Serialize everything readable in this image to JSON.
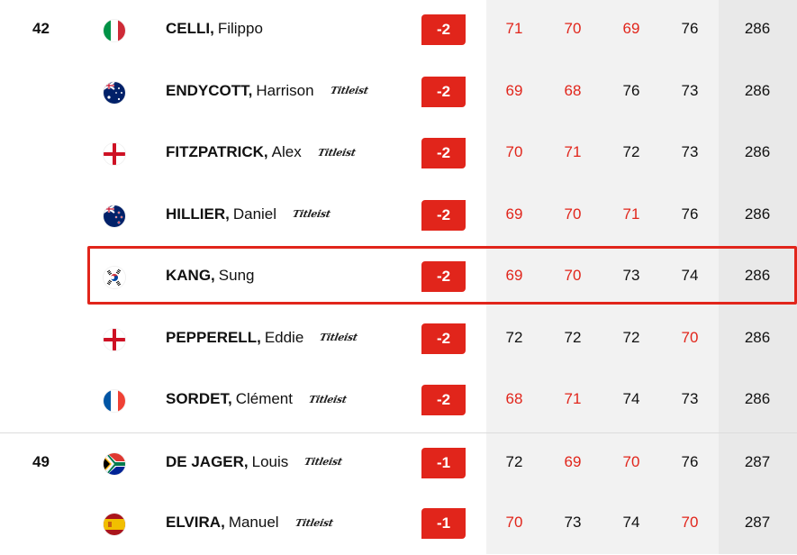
{
  "leaderboard": {
    "accent_color": "#e1251b",
    "rows": [
      {
        "pos": "42",
        "flag": "italy-flag",
        "surname": "CELLI,",
        "given": "Filippo",
        "sponsor": "",
        "topar": "-2",
        "rounds": [
          "71",
          "70",
          "69",
          "76"
        ],
        "under": [
          true,
          true,
          true,
          false
        ],
        "total": "286"
      },
      {
        "pos": "",
        "flag": "australia-flag",
        "surname": "ENDYCOTT,",
        "given": "Harrison",
        "sponsor": "Titleist",
        "topar": "-2",
        "rounds": [
          "69",
          "68",
          "76",
          "73"
        ],
        "under": [
          true,
          true,
          false,
          false
        ],
        "total": "286"
      },
      {
        "pos": "",
        "flag": "england-flag",
        "surname": "FITZPATRICK,",
        "given": "Alex",
        "sponsor": "Titleist",
        "topar": "-2",
        "rounds": [
          "70",
          "71",
          "72",
          "73"
        ],
        "under": [
          true,
          true,
          false,
          false
        ],
        "total": "286"
      },
      {
        "pos": "",
        "flag": "new-zealand-flag",
        "surname": "HILLIER,",
        "given": "Daniel",
        "sponsor": "Titleist",
        "topar": "-2",
        "rounds": [
          "69",
          "70",
          "71",
          "76"
        ],
        "under": [
          true,
          true,
          true,
          false
        ],
        "total": "286"
      },
      {
        "pos": "",
        "flag": "south-korea-flag",
        "surname": "KANG,",
        "given": "Sung",
        "sponsor": "",
        "topar": "-2",
        "rounds": [
          "69",
          "70",
          "73",
          "74"
        ],
        "under": [
          true,
          true,
          false,
          false
        ],
        "total": "286",
        "highlight": true
      },
      {
        "pos": "",
        "flag": "england-flag",
        "surname": "PEPPERELL,",
        "given": "Eddie",
        "sponsor": "Titleist",
        "topar": "-2",
        "rounds": [
          "72",
          "72",
          "72",
          "70"
        ],
        "under": [
          false,
          false,
          false,
          true
        ],
        "total": "286"
      },
      {
        "pos": "",
        "flag": "france-flag",
        "surname": "SORDET,",
        "given": "Clément",
        "sponsor": "Titleist",
        "topar": "-2",
        "rounds": [
          "68",
          "71",
          "74",
          "73"
        ],
        "under": [
          true,
          true,
          false,
          false
        ],
        "total": "286"
      },
      {
        "pos": "49",
        "flag": "south-africa-flag",
        "surname": "DE JAGER,",
        "given": "Louis",
        "sponsor": "Titleist",
        "topar": "-1",
        "rounds": [
          "72",
          "69",
          "70",
          "76"
        ],
        "under": [
          false,
          true,
          true,
          false
        ],
        "total": "287",
        "separator": true
      },
      {
        "pos": "",
        "flag": "spain-flag",
        "surname": "ELVIRA,",
        "given": "Manuel",
        "sponsor": "Titleist",
        "topar": "-1",
        "rounds": [
          "70",
          "73",
          "74",
          "70"
        ],
        "under": [
          true,
          false,
          false,
          true
        ],
        "total": "287"
      }
    ]
  }
}
